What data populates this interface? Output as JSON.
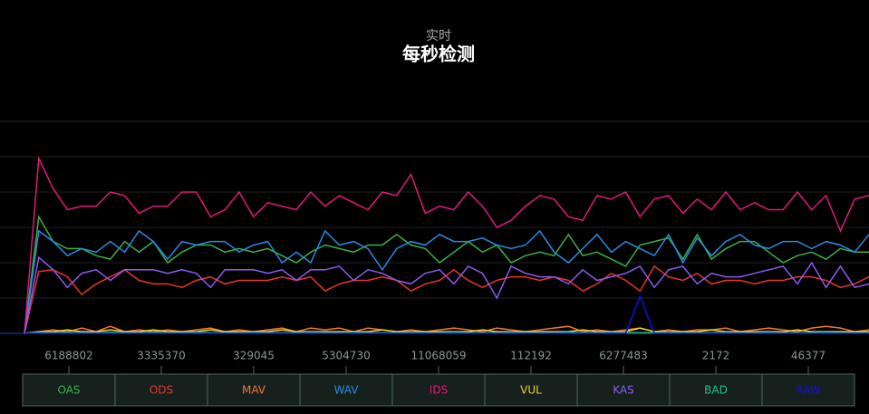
{
  "chart_data": {
    "type": "line",
    "subtitle": "实时",
    "title": "每秒检测",
    "ylim": [
      0,
      6
    ],
    "yticks": [
      0,
      1,
      2,
      3,
      4,
      5,
      6
    ],
    "grid": true,
    "series": [
      {
        "name": "OAS",
        "color": "#3cb043",
        "values": [
          0,
          3.3,
          2.6,
          2.4,
          2.4,
          2.2,
          2.1,
          2.6,
          2.3,
          2.6,
          2.0,
          2.3,
          2.5,
          2.5,
          2.3,
          2.4,
          2.3,
          2.4,
          2.2,
          2.0,
          2.3,
          2.5,
          2.4,
          2.3,
          2.5,
          2.5,
          2.8,
          2.5,
          2.4,
          2.0,
          2.3,
          2.6,
          2.3,
          2.5,
          2.0,
          2.2,
          2.3,
          2.2,
          2.8,
          2.2,
          2.3,
          2.1,
          1.9,
          2.5,
          2.6,
          2.7,
          2.1,
          2.8,
          2.1,
          2.4,
          2.6,
          2.6,
          2.3,
          2.0,
          2.2,
          2.3,
          2.1,
          2.4,
          2.3,
          2.3
        ]
      },
      {
        "name": "ODS",
        "color": "#e8352a",
        "values": [
          0,
          1.75,
          1.8,
          1.6,
          1.1,
          1.4,
          1.6,
          1.8,
          1.5,
          1.4,
          1.4,
          1.3,
          1.5,
          1.6,
          1.4,
          1.5,
          1.5,
          1.5,
          1.6,
          1.5,
          1.6,
          1.2,
          1.4,
          1.5,
          1.5,
          1.6,
          1.5,
          1.2,
          1.4,
          1.5,
          1.8,
          1.5,
          1.3,
          1.5,
          1.6,
          1.6,
          1.5,
          1.6,
          1.5,
          1.2,
          1.4,
          1.7,
          1.5,
          1.2,
          1.9,
          1.6,
          1.5,
          1.7,
          1.4,
          1.5,
          1.5,
          1.4,
          1.5,
          1.5,
          1.6,
          1.6,
          1.5,
          1.3,
          1.4,
          1.6
        ]
      },
      {
        "name": "MAV",
        "color": "#f07830",
        "values": [
          0,
          0.05,
          0.1,
          0.05,
          0.15,
          0.05,
          0.2,
          0.05,
          0.1,
          0.05,
          0.1,
          0.05,
          0.1,
          0.15,
          0.05,
          0.1,
          0.05,
          0.1,
          0.15,
          0.05,
          0.15,
          0.1,
          0.15,
          0.05,
          0.15,
          0.1,
          0.05,
          0.1,
          0.05,
          0.1,
          0.15,
          0.1,
          0.05,
          0.15,
          0.1,
          0.05,
          0.1,
          0.15,
          0.2,
          0.05,
          0.1,
          0.05,
          0.1,
          0.15,
          0.05,
          0.1,
          0.05,
          0.1,
          0.1,
          0.15,
          0.05,
          0.1,
          0.15,
          0.1,
          0.05,
          0.15,
          0.2,
          0.15,
          0.05,
          0.1
        ]
      },
      {
        "name": "WAV",
        "color": "#2a8ae0",
        "values": [
          0,
          2.9,
          2.6,
          2.2,
          2.4,
          2.3,
          2.6,
          2.3,
          2.9,
          2.6,
          2.1,
          2.6,
          2.5,
          2.6,
          2.6,
          2.3,
          2.5,
          2.6,
          2.0,
          2.3,
          2.0,
          2.9,
          2.5,
          2.6,
          2.4,
          1.8,
          2.4,
          2.6,
          2.5,
          2.8,
          2.6,
          2.6,
          2.7,
          2.5,
          2.4,
          2.5,
          2.9,
          2.3,
          2.0,
          2.4,
          2.8,
          2.3,
          2.6,
          2.4,
          2.2,
          2.8,
          2.0,
          2.7,
          2.2,
          2.6,
          2.8,
          2.5,
          2.4,
          2.6,
          2.6,
          2.4,
          2.6,
          2.5,
          2.3,
          2.8
        ]
      },
      {
        "name": "IDS",
        "color": "#e0197a",
        "values": [
          0,
          4.95,
          4.1,
          3.5,
          3.6,
          3.6,
          4.0,
          3.9,
          3.4,
          3.6,
          3.6,
          4.0,
          4.0,
          3.3,
          3.5,
          4.0,
          3.3,
          3.7,
          3.6,
          3.5,
          4.0,
          3.6,
          3.9,
          3.7,
          3.5,
          4.0,
          3.9,
          4.5,
          3.4,
          3.6,
          3.5,
          4.0,
          3.6,
          3.0,
          3.2,
          3.6,
          3.9,
          3.8,
          3.3,
          3.2,
          3.9,
          3.8,
          4.0,
          3.3,
          3.8,
          3.9,
          3.4,
          3.8,
          3.5,
          4.0,
          3.5,
          3.7,
          3.5,
          3.5,
          4.0,
          3.5,
          3.9,
          2.9,
          3.8,
          3.9
        ]
      },
      {
        "name": "VUL",
        "color": "#f0d030",
        "values": [
          0,
          0.05,
          0.05,
          0.1,
          0.05,
          0.05,
          0.1,
          0.05,
          0.05,
          0.1,
          0.05,
          0.05,
          0.05,
          0.1,
          0.05,
          0.05,
          0.05,
          0.05,
          0.1,
          0.05,
          0.05,
          0.05,
          0.05,
          0.05,
          0.05,
          0.1,
          0.05,
          0.05,
          0.05,
          0.05,
          0.05,
          0.05,
          0.1,
          0.05,
          0.05,
          0.05,
          0.05,
          0.05,
          0.05,
          0.1,
          0.05,
          0.05,
          0.05,
          0.15,
          0.05,
          0.05,
          0.05,
          0.05,
          0.1,
          0.05,
          0.05,
          0.05,
          0.05,
          0.05,
          0.1,
          0.05,
          0.05,
          0.05,
          0.05,
          0.05
        ]
      },
      {
        "name": "KAS",
        "color": "#8a5cf0",
        "values": [
          0,
          2.15,
          1.8,
          1.3,
          1.7,
          1.8,
          1.5,
          1.8,
          1.8,
          1.8,
          1.7,
          1.8,
          1.7,
          1.3,
          1.8,
          1.8,
          1.8,
          1.7,
          1.8,
          1.5,
          1.8,
          1.8,
          1.9,
          1.5,
          1.8,
          1.7,
          1.5,
          1.4,
          1.7,
          1.8,
          1.4,
          1.9,
          1.7,
          1.0,
          1.9,
          1.7,
          1.6,
          1.6,
          1.4,
          1.8,
          1.5,
          1.6,
          1.7,
          1.9,
          1.3,
          1.8,
          1.9,
          1.4,
          1.7,
          1.6,
          1.6,
          1.7,
          1.8,
          1.9,
          1.4,
          2.0,
          1.3,
          1.9,
          1.3,
          1.4
        ]
      },
      {
        "name": "BAD",
        "color": "#20c090",
        "values": [
          0,
          0.03,
          0.02,
          0.03,
          0.02,
          0.02,
          0.03,
          0.02,
          0.02,
          0.03,
          0.02,
          0.02,
          0.03,
          0.02,
          0.02,
          0.02,
          0.03,
          0.02,
          0.02,
          0.02,
          0.03,
          0.02,
          0.02,
          0.03,
          0.02,
          0.02,
          0.02,
          0.03,
          0.02,
          0.02,
          0.03,
          0.02,
          0.02,
          0.02,
          0.03,
          0.02,
          0.02,
          0.02,
          0.03,
          0.02,
          0.02,
          0.03,
          0.02,
          0.02,
          0.02,
          0.03,
          0.02,
          0.02,
          0.02,
          0.03,
          0.02,
          0.02,
          0.03,
          0.02,
          0.02,
          0.02,
          0.03,
          0.02,
          0.02,
          0.02
        ]
      },
      {
        "name": "RAW",
        "color": "#1010e0",
        "values": [
          0,
          0,
          0,
          0,
          0,
          0,
          0,
          0,
          0,
          0,
          0,
          0,
          0,
          0,
          0,
          0,
          0,
          0,
          0,
          0,
          0,
          0,
          0,
          0,
          0,
          0,
          0,
          0,
          0,
          0,
          0,
          0,
          0,
          0,
          0,
          0,
          0,
          0,
          0,
          0,
          0,
          0,
          0,
          1.05,
          0,
          0,
          0,
          0,
          0,
          0,
          0,
          0,
          0,
          0,
          0,
          0,
          0,
          0,
          0,
          0
        ]
      }
    ],
    "totals": [
      6188802,
      3335370,
      329045,
      5304730,
      11068059,
      112192,
      6277483,
      2172,
      46377
    ]
  }
}
